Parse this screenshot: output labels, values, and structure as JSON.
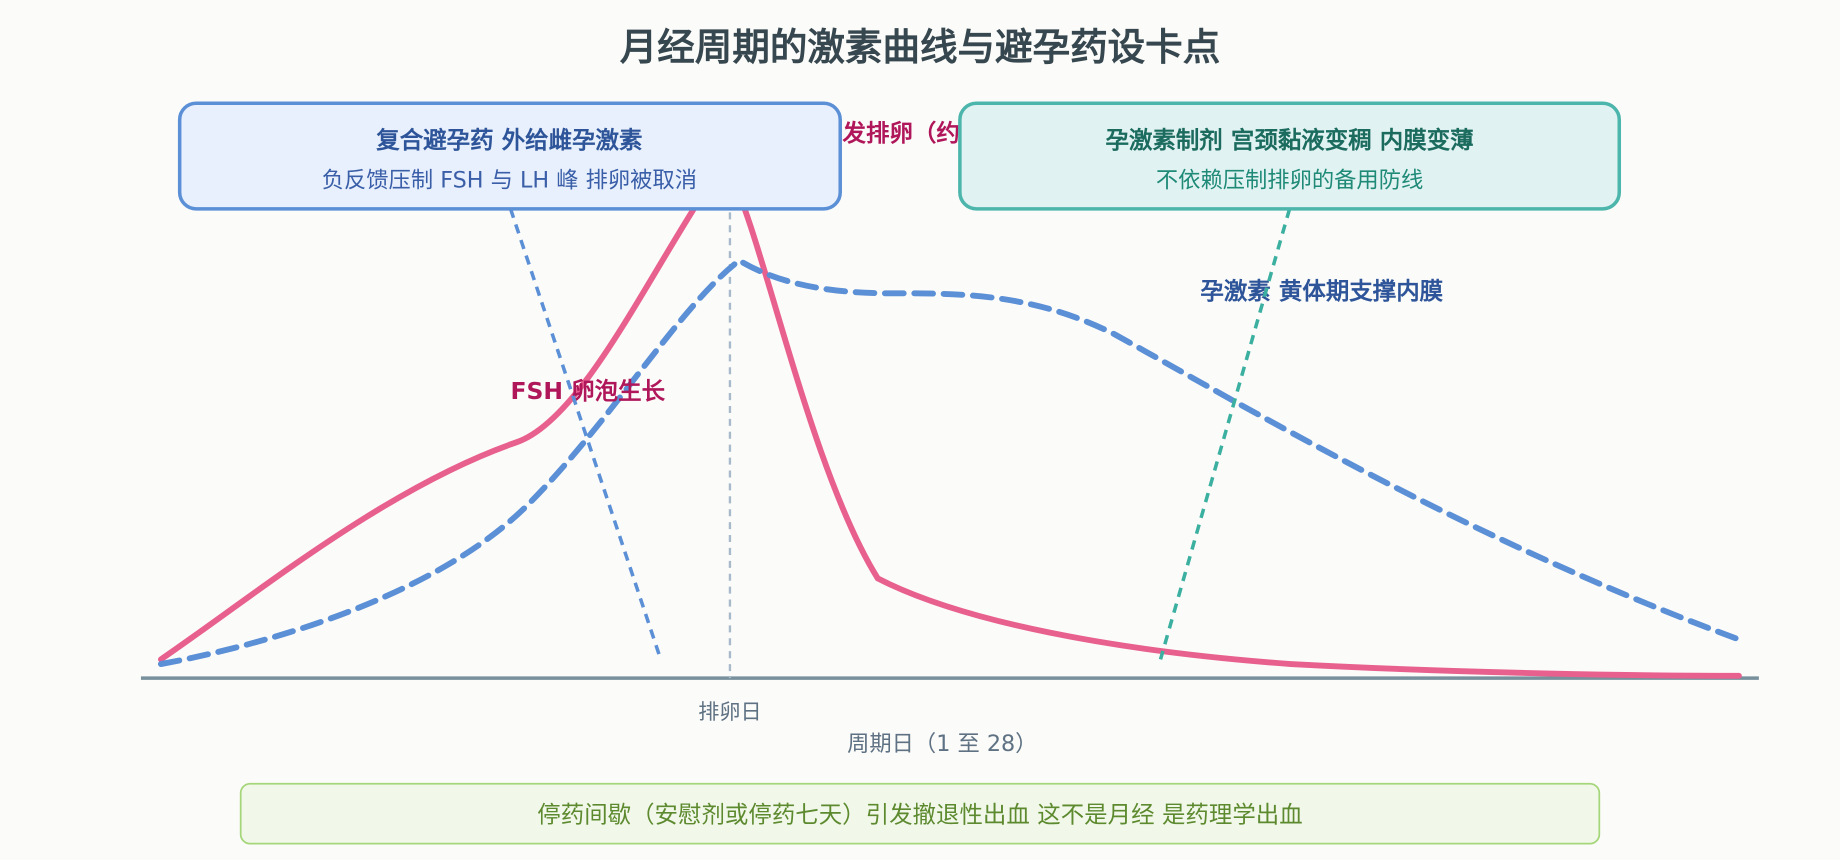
{
  "title": "月经周期的激素曲线与避孕药设卡点",
  "callouts": {
    "combined_pill": {
      "title": "复合避孕药 外给雌孕激素",
      "subtitle": "负反馈压制 FSH 与 LH 峰 排卵被取消"
    },
    "progestin_only": {
      "title": "孕激素制剂 宫颈黏液变稠 内膜变薄",
      "subtitle": "不依赖压制排卵的备用防线"
    }
  },
  "labels": {
    "ovulation_trigger_partial": "发排卵（约",
    "fsh": "FSH 卵泡生长",
    "progesterone": "孕激素 黄体期支撑内膜"
  },
  "axis": {
    "ovulation_tick": "排卵日",
    "xlabel": "周期日（1 至 28）"
  },
  "footer_note": "停药间歇（安慰剂或停药七天）引发撤退性出血 这不是月经 是药理学出血",
  "colors": {
    "pink_curve": "#e8608e",
    "pink_label": "#b0175a",
    "blue_curve": "#5b8fd6",
    "blue_label": "#2e5599",
    "teal": "#4db6ac",
    "teal_label": "#1b6b5e",
    "axis": "#78909c",
    "footer_border": "#a5d67a",
    "footer_fill": "#f1f8e9"
  }
}
